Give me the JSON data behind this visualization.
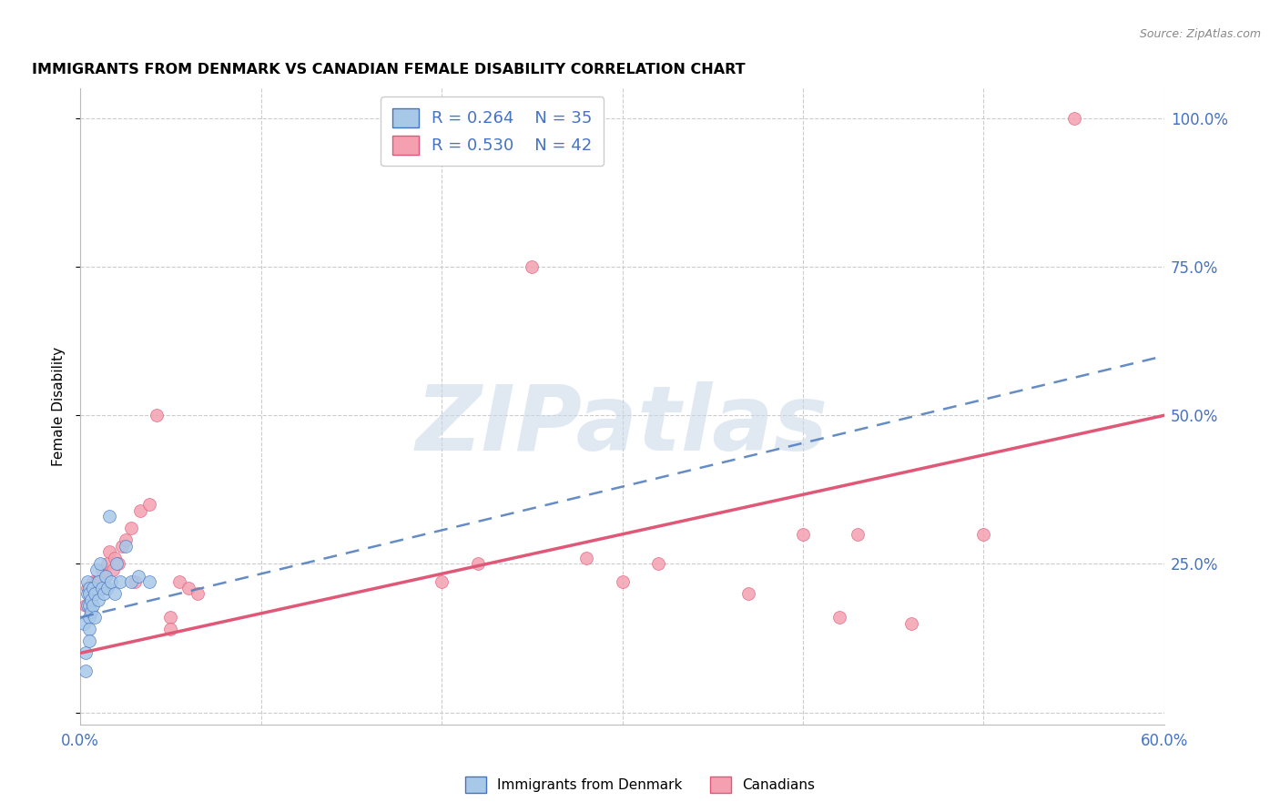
{
  "title": "IMMIGRANTS FROM DENMARK VS CANADIAN FEMALE DISABILITY CORRELATION CHART",
  "source": "Source: ZipAtlas.com",
  "ylabel": "Female Disability",
  "xlim": [
    0.0,
    0.6
  ],
  "ylim": [
    -0.02,
    1.05
  ],
  "yticks": [
    0.0,
    0.25,
    0.5,
    0.75,
    1.0
  ],
  "ytick_labels": [
    "",
    "25.0%",
    "50.0%",
    "75.0%",
    "100.0%"
  ],
  "xticks": [
    0.0,
    0.1,
    0.2,
    0.3,
    0.4,
    0.5,
    0.6
  ],
  "xtick_labels": [
    "0.0%",
    "",
    "",
    "",
    "",
    "",
    "60.0%"
  ],
  "legend_label1": "Immigrants from Denmark",
  "legend_label2": "Canadians",
  "R1": 0.264,
  "N1": 35,
  "R2": 0.53,
  "N2": 42,
  "color1": "#a8c8e8",
  "color2": "#f4a0b0",
  "color1_line": "#5580c0",
  "color2_line": "#e05878",
  "color1_dark": "#4472C4",
  "color2_dark": "#e05878",
  "marker_size": 100,
  "background_color": "#ffffff",
  "watermark": "ZIPatlas",
  "blue_x": [
    0.002,
    0.003,
    0.003,
    0.004,
    0.004,
    0.004,
    0.005,
    0.005,
    0.005,
    0.005,
    0.005,
    0.005,
    0.006,
    0.006,
    0.007,
    0.007,
    0.008,
    0.008,
    0.009,
    0.01,
    0.01,
    0.011,
    0.012,
    0.013,
    0.014,
    0.015,
    0.016,
    0.017,
    0.019,
    0.02,
    0.022,
    0.025,
    0.028,
    0.032,
    0.038
  ],
  "blue_y": [
    0.15,
    0.1,
    0.07,
    0.22,
    0.2,
    0.18,
    0.21,
    0.2,
    0.18,
    0.16,
    0.14,
    0.12,
    0.19,
    0.17,
    0.21,
    0.18,
    0.2,
    0.16,
    0.24,
    0.22,
    0.19,
    0.25,
    0.21,
    0.2,
    0.23,
    0.21,
    0.33,
    0.22,
    0.2,
    0.25,
    0.22,
    0.28,
    0.22,
    0.23,
    0.22
  ],
  "pink_x": [
    0.003,
    0.004,
    0.005,
    0.006,
    0.007,
    0.008,
    0.009,
    0.01,
    0.011,
    0.012,
    0.013,
    0.014,
    0.015,
    0.016,
    0.018,
    0.019,
    0.021,
    0.023,
    0.025,
    0.028,
    0.03,
    0.033,
    0.038,
    0.042,
    0.05,
    0.05,
    0.055,
    0.06,
    0.065,
    0.2,
    0.22,
    0.25,
    0.28,
    0.3,
    0.32,
    0.37,
    0.4,
    0.42,
    0.43,
    0.46,
    0.5,
    0.55
  ],
  "pink_y": [
    0.18,
    0.21,
    0.2,
    0.19,
    0.22,
    0.21,
    0.22,
    0.22,
    0.22,
    0.24,
    0.21,
    0.23,
    0.25,
    0.27,
    0.24,
    0.26,
    0.25,
    0.28,
    0.29,
    0.31,
    0.22,
    0.34,
    0.35,
    0.5,
    0.16,
    0.14,
    0.22,
    0.21,
    0.2,
    0.22,
    0.25,
    0.75,
    0.26,
    0.22,
    0.25,
    0.2,
    0.3,
    0.16,
    0.3,
    0.15,
    0.3,
    1.0
  ],
  "blue_line_x0": 0.0,
  "blue_line_y0": 0.16,
  "blue_line_x1": 0.6,
  "blue_line_y1": 0.6,
  "pink_line_x0": 0.0,
  "pink_line_y0": 0.1,
  "pink_line_x1": 0.6,
  "pink_line_y1": 0.5
}
